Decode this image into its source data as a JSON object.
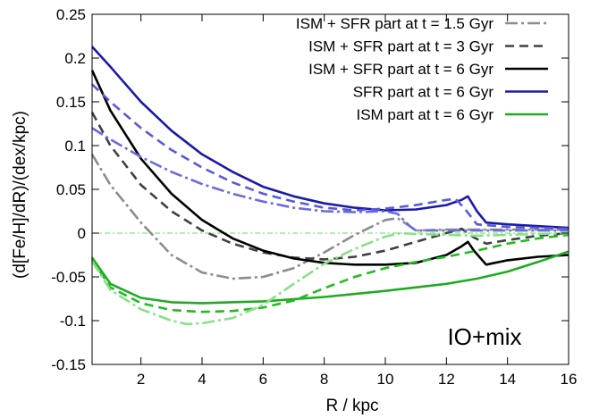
{
  "chart_data": {
    "type": "line",
    "title": "",
    "xlabel": "R / kpc",
    "ylabel": "(d[Fe/H]/dR)/(dex/kpc)",
    "xlim": [
      0.4,
      16
    ],
    "ylim": [
      -0.15,
      0.25
    ],
    "xticks": [
      "2",
      "4",
      "6",
      "8",
      "10",
      "12",
      "14",
      "16"
    ],
    "yticks": [
      "-0.15",
      "-0.1",
      "-0.05",
      "0",
      "0.05",
      "0.1",
      "0.15",
      "0.2",
      "0.25"
    ],
    "grid": false,
    "legend_position": "top-right",
    "annotation": "IO+mix",
    "reference_line": {
      "y": 0,
      "color": "#66dd66"
    },
    "series": [
      {
        "name": "ISM + SFR part at t = 1.5 Gyr",
        "color": "#8c8c8c",
        "dash": "dashdot",
        "points": [
          [
            0.4,
            0.09
          ],
          [
            1,
            0.055
          ],
          [
            2,
            0.012
          ],
          [
            3,
            -0.025
          ],
          [
            4,
            -0.045
          ],
          [
            5,
            -0.052
          ],
          [
            6,
            -0.05
          ],
          [
            7,
            -0.04
          ],
          [
            8,
            -0.022
          ],
          [
            9,
            -0.002
          ],
          [
            10,
            0.015
          ],
          [
            10.4,
            0.017
          ],
          [
            10.8,
            0.008
          ],
          [
            11,
            0.003
          ],
          [
            12,
            0.004
          ],
          [
            13,
            0.004
          ],
          [
            14,
            0.004
          ],
          [
            16,
            0.004
          ]
        ]
      },
      {
        "name": "ISM + SFR part at t = 3 Gyr",
        "color": "#404040",
        "dash": "dashed",
        "points": [
          [
            0.4,
            0.138
          ],
          [
            1,
            0.1
          ],
          [
            2,
            0.055
          ],
          [
            3,
            0.025
          ],
          [
            4,
            0.003
          ],
          [
            5,
            -0.012
          ],
          [
            6,
            -0.022
          ],
          [
            7,
            -0.028
          ],
          [
            8,
            -0.03
          ],
          [
            9,
            -0.027
          ],
          [
            10,
            -0.02
          ],
          [
            11,
            -0.01
          ],
          [
            12,
            0
          ],
          [
            12.5,
            0.005
          ],
          [
            12.9,
            -0.005
          ],
          [
            13.3,
            -0.012
          ],
          [
            14,
            -0.008
          ],
          [
            15,
            -0.003
          ],
          [
            16,
            0
          ]
        ]
      },
      {
        "name": "ISM + SFR part at t = 6 Gyr",
        "color": "#000000",
        "dash": "solid",
        "points": [
          [
            0.4,
            0.186
          ],
          [
            1,
            0.14
          ],
          [
            2,
            0.085
          ],
          [
            3,
            0.045
          ],
          [
            4,
            0.015
          ],
          [
            5,
            -0.006
          ],
          [
            6,
            -0.02
          ],
          [
            7,
            -0.029
          ],
          [
            8,
            -0.034
          ],
          [
            9,
            -0.036
          ],
          [
            10,
            -0.036
          ],
          [
            11,
            -0.034
          ],
          [
            12,
            -0.025
          ],
          [
            12.5,
            -0.015
          ],
          [
            12.7,
            -0.01
          ],
          [
            12.9,
            -0.02
          ],
          [
            13.3,
            -0.036
          ],
          [
            14,
            -0.031
          ],
          [
            15,
            -0.027
          ],
          [
            16,
            -0.025
          ]
        ]
      },
      {
        "name": "SFR part at t = 6 Gyr",
        "color": "#1a1aaa",
        "dash": "solid",
        "points": [
          [
            0.4,
            0.213
          ],
          [
            1,
            0.19
          ],
          [
            2,
            0.15
          ],
          [
            3,
            0.117
          ],
          [
            4,
            0.09
          ],
          [
            5,
            0.07
          ],
          [
            6,
            0.053
          ],
          [
            7,
            0.042
          ],
          [
            8,
            0.034
          ],
          [
            9,
            0.029
          ],
          [
            10,
            0.026
          ],
          [
            11,
            0.027
          ],
          [
            12,
            0.032
          ],
          [
            12.5,
            0.038
          ],
          [
            12.7,
            0.042
          ],
          [
            13,
            0.025
          ],
          [
            13.3,
            0.012
          ],
          [
            14,
            0.01
          ],
          [
            15,
            0.008
          ],
          [
            16,
            0.006
          ]
        ]
      },
      {
        "name": "ISM part at t = 6 Gyr",
        "color": "#22aa22",
        "dash": "solid",
        "points": [
          [
            0.4,
            -0.028
          ],
          [
            1,
            -0.058
          ],
          [
            2,
            -0.074
          ],
          [
            3,
            -0.079
          ],
          [
            4,
            -0.08
          ],
          [
            6,
            -0.078
          ],
          [
            8,
            -0.073
          ],
          [
            10,
            -0.066
          ],
          [
            12,
            -0.058
          ],
          [
            13,
            -0.052
          ],
          [
            14,
            -0.044
          ],
          [
            15,
            -0.033
          ],
          [
            16,
            -0.021
          ]
        ]
      },
      {
        "name": "",
        "color": "#5a5ad8",
        "dash": "dashed",
        "points": [
          [
            0.4,
            0.17
          ],
          [
            1,
            0.15
          ],
          [
            2,
            0.12
          ],
          [
            3,
            0.095
          ],
          [
            4,
            0.075
          ],
          [
            5,
            0.058
          ],
          [
            6,
            0.045
          ],
          [
            7,
            0.036
          ],
          [
            8,
            0.029
          ],
          [
            9,
            0.026
          ],
          [
            10,
            0.028
          ],
          [
            11,
            0.032
          ],
          [
            12,
            0.038
          ],
          [
            12.3,
            0.039
          ],
          [
            12.6,
            0.028
          ],
          [
            13,
            0.01
          ],
          [
            14,
            0.007
          ],
          [
            16,
            0.005
          ]
        ]
      },
      {
        "name": "",
        "color": "#6a6ae0",
        "dash": "dashdot",
        "points": [
          [
            0.4,
            0.12
          ],
          [
            1,
            0.107
          ],
          [
            2,
            0.087
          ],
          [
            3,
            0.07
          ],
          [
            4,
            0.056
          ],
          [
            5,
            0.045
          ],
          [
            6,
            0.036
          ],
          [
            7,
            0.029
          ],
          [
            8,
            0.025
          ],
          [
            9,
            0.024
          ],
          [
            10,
            0.025
          ],
          [
            10.4,
            0.022
          ],
          [
            10.8,
            0.008
          ],
          [
            11,
            0.003
          ],
          [
            12,
            0.003
          ],
          [
            14,
            0.003
          ],
          [
            16,
            0.003
          ]
        ]
      },
      {
        "name": "",
        "color": "#22bb22",
        "dash": "dashed",
        "points": [
          [
            0.4,
            -0.03
          ],
          [
            1,
            -0.062
          ],
          [
            2,
            -0.08
          ],
          [
            3,
            -0.088
          ],
          [
            4,
            -0.09
          ],
          [
            5,
            -0.089
          ],
          [
            6,
            -0.085
          ],
          [
            7,
            -0.077
          ],
          [
            8,
            -0.063
          ],
          [
            9,
            -0.05
          ],
          [
            10,
            -0.04
          ],
          [
            11,
            -0.033
          ],
          [
            12,
            -0.027
          ],
          [
            13,
            -0.02
          ],
          [
            14,
            -0.012
          ],
          [
            15,
            -0.006
          ],
          [
            16,
            -0.002
          ]
        ]
      },
      {
        "name": "",
        "color": "#88e088",
        "dash": "dashdot",
        "points": [
          [
            0.4,
            -0.032
          ],
          [
            1,
            -0.065
          ],
          [
            2,
            -0.087
          ],
          [
            3,
            -0.1
          ],
          [
            3.5,
            -0.104
          ],
          [
            4,
            -0.103
          ],
          [
            5,
            -0.097
          ],
          [
            6,
            -0.082
          ],
          [
            7,
            -0.058
          ],
          [
            8,
            -0.035
          ],
          [
            9,
            -0.018
          ],
          [
            10,
            -0.004
          ],
          [
            10.5,
            0
          ],
          [
            11,
            -0.001
          ],
          [
            12,
            -0.002
          ],
          [
            13,
            -0.003
          ],
          [
            14,
            -0.002
          ],
          [
            15,
            -0.001
          ],
          [
            16,
            0
          ]
        ]
      }
    ]
  }
}
